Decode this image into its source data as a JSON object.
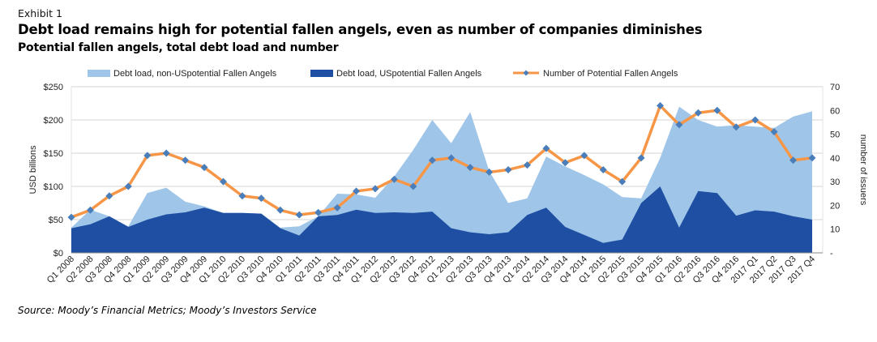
{
  "header": {
    "exhibit": "Exhibit 1",
    "title": "Debt load remains high for potential fallen angels, even as number of companies diminishes",
    "subtitle": "Potential fallen angels, total debt load and number"
  },
  "source": "Source: Moody’s Financial Metrics; Moody’s Investors Service",
  "colors": {
    "non_us": "#9fc5e8",
    "us": "#1f4fa3",
    "line": "#f79646",
    "marker": "#4a7ebb"
  },
  "chart_data": {
    "type": "area",
    "categories": [
      "Q1 2008",
      "Q2 2008",
      "Q3 2008",
      "Q4 2008",
      "Q1 2009",
      "Q2 2009",
      "Q3 2009",
      "Q4 2009",
      "Q1 2010",
      "Q2 2010",
      "Q3 2010",
      "Q4 2010",
      "Q1 2011",
      "Q2 2011",
      "Q3 2011",
      "Q4 2011",
      "Q1 2012",
      "Q2 2012",
      "Q3 2012",
      "Q4 2012",
      "Q1 2013",
      "Q2 2013",
      "Q3 2013",
      "Q4 2013",
      "Q1 2014",
      "Q2 2014",
      "Q3 2014",
      "Q4 2014",
      "Q1 2015",
      "Q2 2015",
      "Q3 2015",
      "Q4 2015",
      "Q1 2016",
      "Q2 2016",
      "Q3 2016",
      "Q4 2016",
      "2017 Q1",
      "2017 Q2",
      "2017 Q3",
      "2017 Q4"
    ],
    "series": [
      {
        "name": "Debt load, US potential Fallen Angels",
        "legend": "Debt load, USpotential Fallen Angels",
        "axis": "left",
        "stacked": true,
        "values": [
          37,
          43,
          55,
          39,
          50,
          58,
          61,
          68,
          60,
          60,
          59,
          37,
          26,
          55,
          57,
          65,
          60,
          61,
          60,
          62,
          37,
          31,
          28,
          31,
          57,
          68,
          39,
          27,
          15,
          20,
          75,
          100,
          38,
          93,
          90,
          56,
          64,
          62,
          55,
          50
        ]
      },
      {
        "name": "Debt load, non-US potential Fallen Angels",
        "legend": "Debt load, non-USpotential Fallen Angels",
        "axis": "left",
        "stacked": true,
        "values": [
          1,
          22,
          0,
          1,
          40,
          40,
          16,
          2,
          0,
          0,
          0,
          1,
          14,
          0,
          32,
          23,
          23,
          54,
          95,
          138,
          128,
          181,
          95,
          44,
          25,
          77,
          91,
          90,
          88,
          64,
          7,
          43,
          182,
          107,
          100,
          136,
          126,
          126,
          150,
          163
        ]
      },
      {
        "name": "Number of Potential Fallen Angels",
        "legend": "Number of Potential Fallen Angels",
        "axis": "right",
        "type": "line",
        "values": [
          15,
          18,
          24,
          28,
          41,
          42,
          39,
          36,
          30,
          24,
          23,
          18,
          16,
          17,
          19,
          26,
          27,
          31,
          28,
          39,
          40,
          36,
          34,
          35,
          37,
          44,
          38,
          41,
          35,
          30,
          40,
          62,
          54,
          59,
          60,
          53,
          56,
          51,
          39,
          40
        ]
      }
    ],
    "ylabel": "USD billions",
    "y2label": "number of issuers",
    "ylim": [
      0,
      250
    ],
    "y2lim": [
      0,
      70
    ],
    "yticks": [
      "$0",
      "$50",
      "$100",
      "$150",
      "$200",
      "$250"
    ],
    "y2ticks": [
      "-",
      "10",
      "20",
      "30",
      "40",
      "50",
      "60",
      "70"
    ],
    "grid": true,
    "legend_position": "top"
  }
}
